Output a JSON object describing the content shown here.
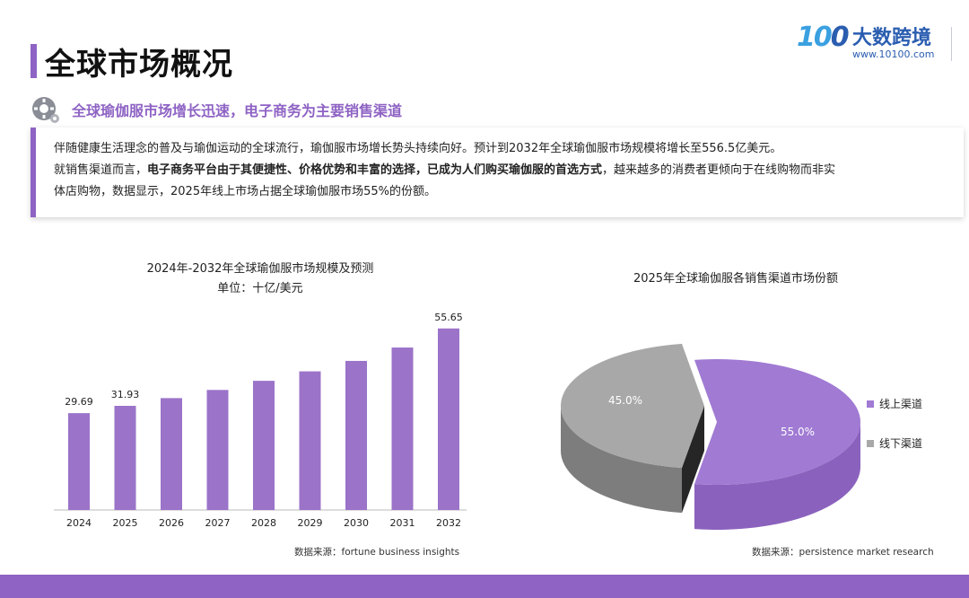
{
  "header": {
    "title": "全球市场概况",
    "logo_mark": "10",
    "logo_mark_tail": "0",
    "logo_name": "大数跨境",
    "logo_url": "www.10100.com"
  },
  "subtitle": "全球瑜伽服市场增长迅速，电子商务为主要销售渠道",
  "description": {
    "line1": "伴随健康生活理念的普及与瑜伽运动的全球流行，瑜伽服市场增长势头持续向好。预计到2032年全球瑜伽服市场规模将增长至556.5亿美元。",
    "line2_prefix": "就销售渠道而言，",
    "line2_bold": "电子商务平台由于其便捷性、价格优势和丰富的选择，已成为人们购买瑜伽服的首选方式",
    "line2_suffix": "，越来越多的消费者更倾向于在线购物而非实",
    "line3": "体店购物，数据显示，2025年线上市场占据全球瑜伽服市场55%的份额。"
  },
  "colors": {
    "accent": "#8e63c4",
    "bar": "#9b73c9",
    "pie_online": "#a07ad3",
    "pie_offline": "#a8a8a8"
  },
  "chart_data": [
    {
      "type": "bar",
      "title": "2024年-2032年全球瑜伽服市场规模及预测",
      "subtitle": "单位：十亿/美元",
      "categories": [
        "2024",
        "2025",
        "2026",
        "2027",
        "2028",
        "2029",
        "2030",
        "2031",
        "2032"
      ],
      "values": [
        29.69,
        31.93,
        34.3,
        36.8,
        39.6,
        42.5,
        45.7,
        49.8,
        55.65
      ],
      "data_labels": {
        "2024": "29.69",
        "2025": "31.93",
        "2032": "55.65"
      },
      "ylim": [
        0,
        60
      ],
      "grid": false,
      "source": "数据来源：fortune business insights"
    },
    {
      "type": "pie",
      "title": "2025年全球瑜伽服各销售渠道市场份额",
      "slices": [
        {
          "name": "线上渠道",
          "value": 55.0,
          "label": "55.0%"
        },
        {
          "name": "线下渠道",
          "value": 45.0,
          "label": "45.0%"
        }
      ],
      "legend": "right",
      "source": "数据来源：persistence market research"
    }
  ]
}
